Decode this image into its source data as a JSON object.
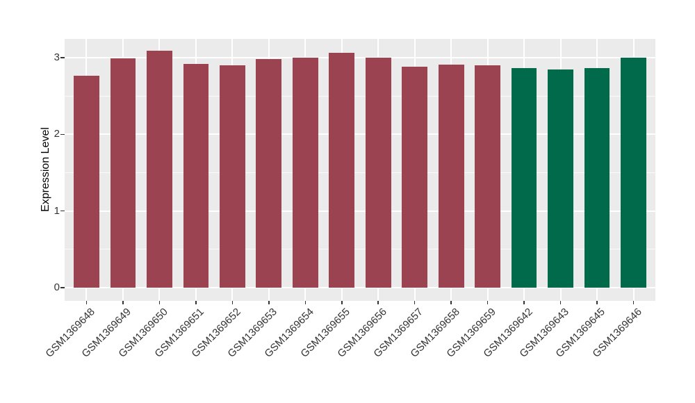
{
  "figure": {
    "background_color": "#FFFFFF",
    "panel_background_color": "#EBEBEB",
    "grid_major_color": "#FFFFFF",
    "grid_minor_color": "#FFFFFF",
    "axis_text_color": "#333333",
    "axis_title_color": "#000000",
    "bar_color_group1": "#9B4350",
    "bar_color_group2": "#006A4A"
  },
  "chart_data": {
    "type": "bar",
    "title": "",
    "xlabel": "",
    "ylabel": "Expression Level",
    "ylim": [
      0,
      3.25
    ],
    "yticks": [
      0,
      1,
      2,
      3
    ],
    "ytick_labels": [
      "0",
      "1",
      "2",
      "3"
    ],
    "yticks_minor": [
      0.5,
      1.5,
      2.5
    ],
    "grid": true,
    "legend_position": "none",
    "x_label_rotation_deg": 45,
    "categories": [
      "GSM1369648",
      "GSM1369649",
      "GSM1369650",
      "GSM1369651",
      "GSM1369652",
      "GSM1369653",
      "GSM1369654",
      "GSM1369655",
      "GSM1369656",
      "GSM1369657",
      "GSM1369658",
      "GSM1369659",
      "GSM1369642",
      "GSM1369643",
      "GSM1369645",
      "GSM1369646"
    ],
    "values": [
      2.76,
      2.99,
      3.09,
      2.92,
      2.9,
      2.98,
      3.0,
      3.06,
      3.0,
      2.88,
      2.91,
      2.9,
      2.86,
      2.85,
      2.86,
      3.0
    ],
    "colors": [
      "#9B4350",
      "#9B4350",
      "#9B4350",
      "#9B4350",
      "#9B4350",
      "#9B4350",
      "#9B4350",
      "#9B4350",
      "#9B4350",
      "#9B4350",
      "#9B4350",
      "#9B4350",
      "#006A4A",
      "#006A4A",
      "#006A4A",
      "#006A4A"
    ]
  }
}
